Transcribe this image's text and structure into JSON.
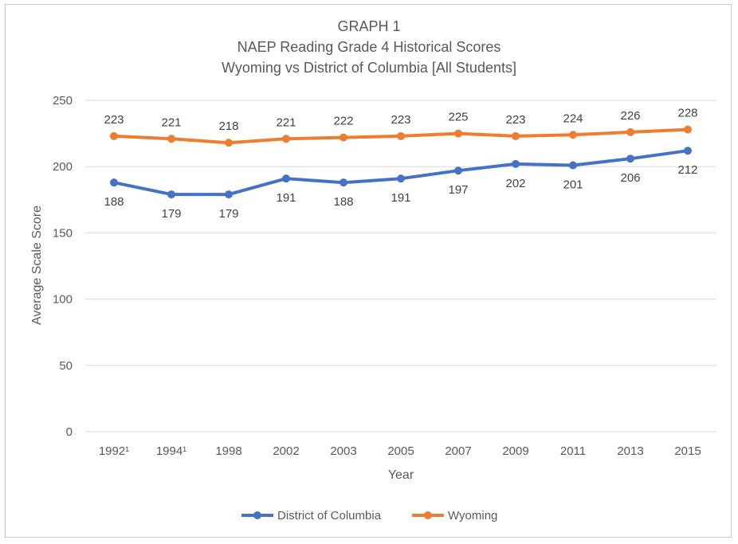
{
  "title_lines": [
    "GRAPH 1",
    "NAEP Reading Grade 4 Historical Scores",
    "Wyoming vs District of Columbia [All Students]"
  ],
  "chart_data": {
    "type": "line",
    "title": "GRAPH 1 NAEP Reading Grade 4 Historical Scores Wyoming vs District of Columbia [All Students]",
    "xlabel": "Year",
    "ylabel": "Average Scale Score",
    "categories": [
      "1992¹",
      "1994¹",
      "1998",
      "2002",
      "2003",
      "2005",
      "2007",
      "2009",
      "2011",
      "2013",
      "2015"
    ],
    "ylim": [
      0,
      250
    ],
    "yticks": [
      0,
      50,
      100,
      150,
      200,
      250
    ],
    "grid": true,
    "legend_position": "bottom",
    "series": [
      {
        "name": "District of Columbia",
        "color": "#4472c4",
        "values": [
          188,
          179,
          179,
          191,
          188,
          191,
          197,
          202,
          201,
          206,
          212
        ],
        "label_position": "below"
      },
      {
        "name": "Wyoming",
        "color": "#ed7d31",
        "values": [
          223,
          221,
          218,
          221,
          222,
          223,
          225,
          223,
          224,
          226,
          228
        ],
        "label_position": "above"
      }
    ]
  }
}
